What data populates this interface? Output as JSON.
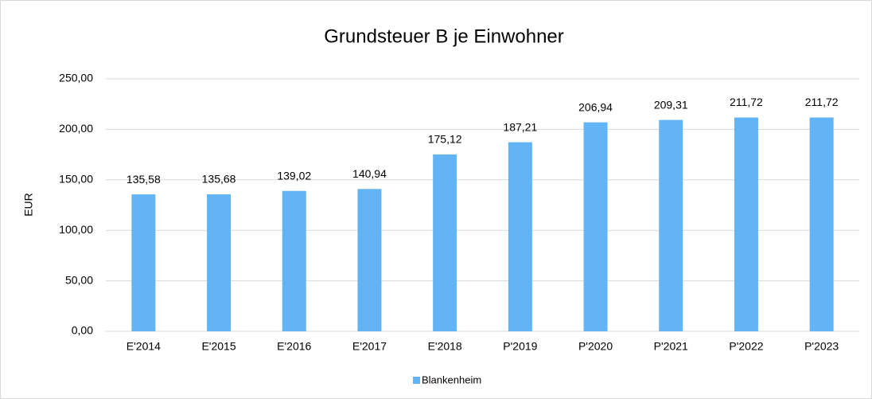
{
  "chart_data": {
    "type": "bar",
    "title": "Grundsteuer B je Einwohner",
    "y_label": "EUR",
    "categories": [
      "E'2014",
      "E'2015",
      "E'2016",
      "E'2017",
      "E'2018",
      "P'2019",
      "P'2020",
      "P'2021",
      "P'2022",
      "P'2023"
    ],
    "series": [
      {
        "name": "Blankenheim",
        "color": "#63b4f5",
        "values": [
          135.58,
          135.68,
          139.02,
          140.94,
          175.12,
          187.21,
          206.94,
          209.31,
          211.72,
          211.72
        ],
        "value_labels": [
          "135,58",
          "135,68",
          "139,02",
          "140,94",
          "175,12",
          "187,21",
          "206,94",
          "209,31",
          "211,72",
          "211,72"
        ]
      }
    ],
    "ylim": [
      0,
      250
    ],
    "yticks": [
      {
        "value": 0,
        "label": "0,00"
      },
      {
        "value": 50,
        "label": "50,00"
      },
      {
        "value": 100,
        "label": "100,00"
      },
      {
        "value": 150,
        "label": "150,00"
      },
      {
        "value": 200,
        "label": "200,00"
      },
      {
        "value": 250,
        "label": "250,00"
      }
    ],
    "grid": true,
    "legend": "bottom"
  }
}
